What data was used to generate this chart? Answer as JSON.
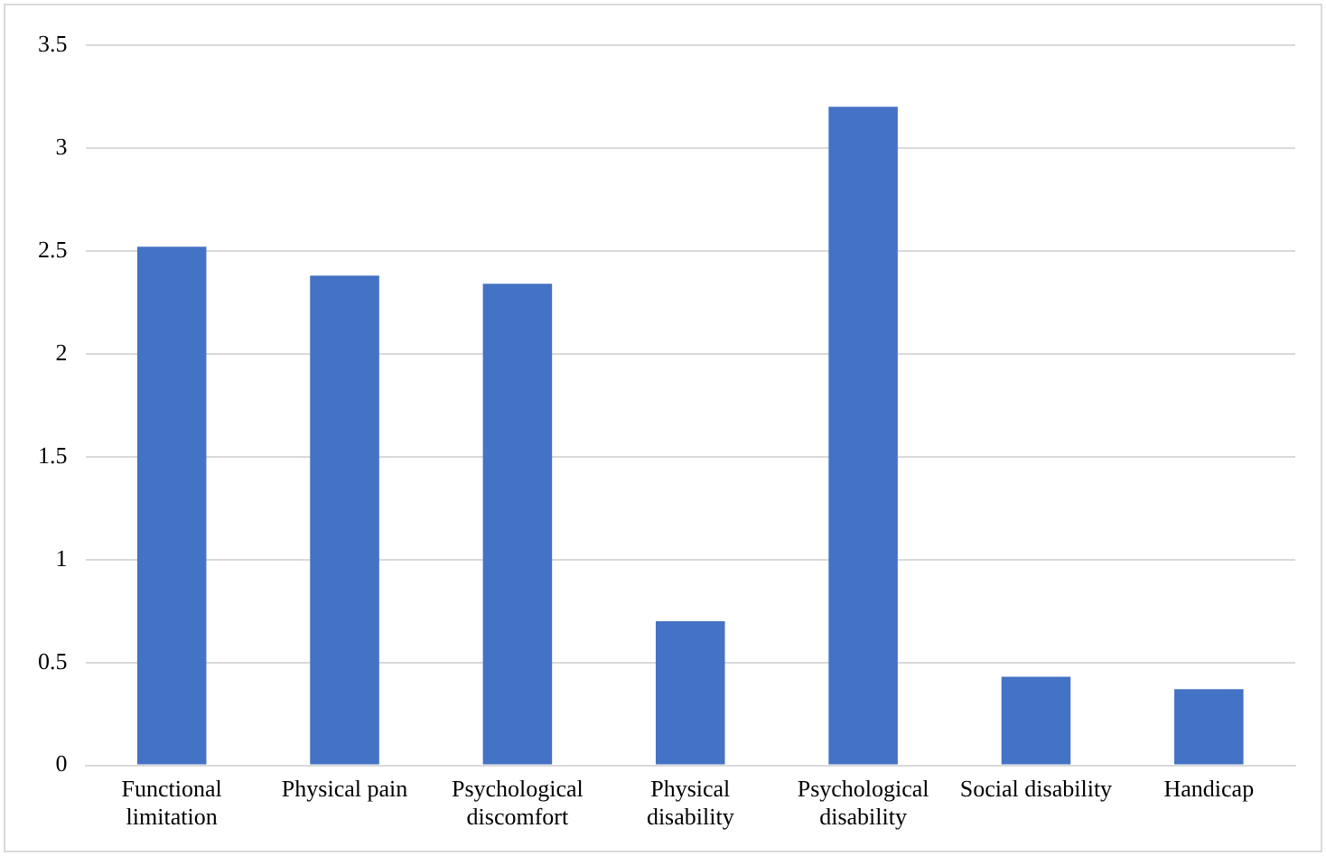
{
  "chart_data": {
    "type": "bar",
    "categories": [
      "Functional limitation",
      "Physical pain",
      "Psychological discomfort",
      "Physical disability",
      "Psychological disability",
      "Social disability",
      "Handicap"
    ],
    "values": [
      2.52,
      2.38,
      2.34,
      0.7,
      3.2,
      0.43,
      0.37
    ],
    "color": "#4472c4",
    "ylim": [
      0,
      3.5
    ],
    "yticks": [
      0,
      0.5,
      1,
      1.5,
      2,
      2.5,
      3,
      3.5
    ],
    "grid": "y",
    "legend": false
  }
}
